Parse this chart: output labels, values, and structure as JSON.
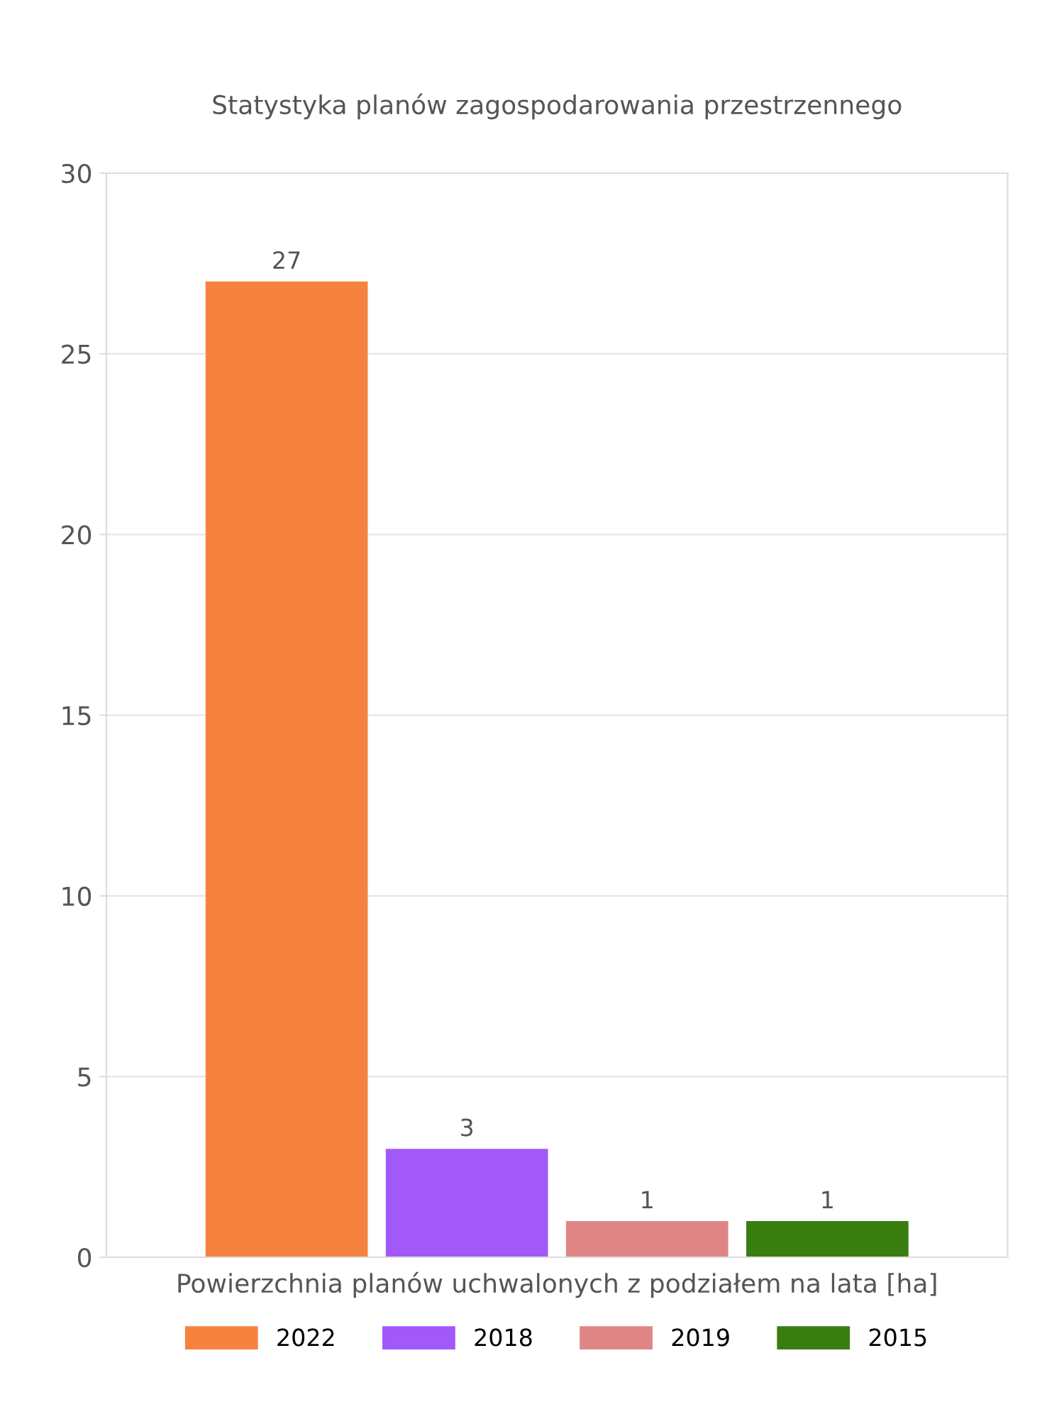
{
  "chart_data": {
    "type": "bar",
    "title": "Statystyka planów zagospodarowania przestrzennego",
    "xlabel": "Powierzchnia planów uchwalonych z podziałem na lata [ha]",
    "categories": [
      null
    ],
    "series": [
      {
        "name": "2022",
        "color": "#f5833f",
        "values": [
          27
        ]
      },
      {
        "name": "2018",
        "color": "#a259f9",
        "values": [
          3
        ]
      },
      {
        "name": "2019",
        "color": "#e08585",
        "values": [
          1
        ]
      },
      {
        "name": "2015",
        "color": "#3a7d10",
        "values": [
          1
        ]
      }
    ],
    "ylim": [
      0,
      30
    ],
    "yticks": [
      0,
      5,
      10,
      15,
      20,
      25,
      30
    ],
    "grid": "y",
    "legend": "bottom",
    "data_labels": true
  }
}
